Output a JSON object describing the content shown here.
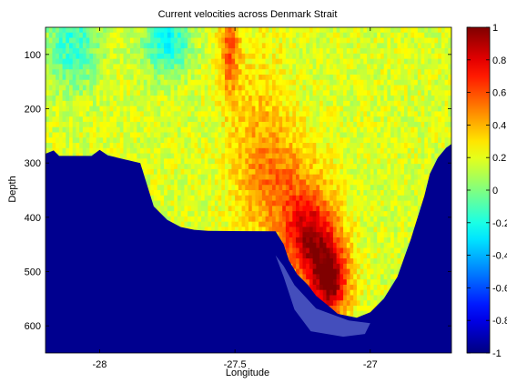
{
  "chart_data": {
    "type": "heatmap",
    "title": "Current velocities across Denmark Strait",
    "xlabel": "Longitude",
    "ylabel": "Depth",
    "xlim": [
      -28.2,
      -26.7
    ],
    "ylim": [
      650,
      50
    ],
    "y_reversed": true,
    "xticks": [
      -28,
      -27.5,
      -27
    ],
    "xtick_labels": [
      "-28",
      "-27.5",
      "-27"
    ],
    "yticks": [
      100,
      200,
      300,
      400,
      500,
      600
    ],
    "ytick_labels": [
      "100",
      "200",
      "300",
      "400",
      "500",
      "600"
    ],
    "grid": false,
    "colormap": "jet",
    "colorbar": {
      "clim": [
        -1,
        1
      ],
      "ticks": [
        1,
        0.8,
        0.6,
        0.4,
        0.2,
        0,
        -0.2,
        -0.4,
        -0.6,
        -0.8,
        -1
      ],
      "tick_labels": [
        "1",
        "0.8",
        "0.6",
        "0.4",
        "0.2",
        "0",
        "-0.2",
        "-0.4",
        "-0.6",
        "-0.8",
        "-1"
      ]
    },
    "colors": {
      "seafloor": "#00008f",
      "overlay": "#4a55c0"
    },
    "bathymetry": [
      [
        -28.2,
        283
      ],
      [
        -28.17,
        277
      ],
      [
        -28.15,
        287
      ],
      [
        -28.03,
        287
      ],
      [
        -28.0,
        276
      ],
      [
        -27.97,
        286
      ],
      [
        -27.85,
        300
      ],
      [
        -27.8,
        380
      ],
      [
        -27.75,
        405
      ],
      [
        -27.7,
        418
      ],
      [
        -27.65,
        423
      ],
      [
        -27.6,
        425
      ],
      [
        -27.35,
        426
      ],
      [
        -27.32,
        450
      ],
      [
        -27.3,
        480
      ],
      [
        -27.27,
        505
      ],
      [
        -27.23,
        525
      ],
      [
        -27.2,
        545
      ],
      [
        -27.15,
        565
      ],
      [
        -27.12,
        578
      ],
      [
        -27.05,
        585
      ],
      [
        -27.0,
        575
      ],
      [
        -26.95,
        550
      ],
      [
        -26.9,
        510
      ],
      [
        -26.85,
        440
      ],
      [
        -26.8,
        360
      ],
      [
        -26.78,
        320
      ],
      [
        -26.75,
        290
      ],
      [
        -26.72,
        272
      ],
      [
        -26.7,
        265
      ]
    ],
    "overlay_region": [
      [
        -27.35,
        470
      ],
      [
        -27.32,
        510
      ],
      [
        -27.28,
        570
      ],
      [
        -27.22,
        610
      ],
      [
        -27.1,
        620
      ],
      [
        -27.02,
        615
      ],
      [
        -27.0,
        595
      ],
      [
        -27.08,
        590
      ],
      [
        -27.2,
        568
      ],
      [
        -27.28,
        525
      ],
      [
        -27.32,
        490
      ]
    ],
    "velocity_features": [
      {
        "lon": -27.22,
        "depth": 440,
        "value": 0.85,
        "sx": 0.07,
        "sd": 55
      },
      {
        "lon": -27.15,
        "depth": 520,
        "value": 0.95,
        "sx": 0.05,
        "sd": 45
      },
      {
        "lon": -27.32,
        "depth": 340,
        "value": 0.45,
        "sx": 0.1,
        "sd": 70
      },
      {
        "lon": -27.42,
        "depth": 240,
        "value": 0.35,
        "sx": 0.08,
        "sd": 120
      },
      {
        "lon": -27.52,
        "depth": 90,
        "value": 0.55,
        "sx": 0.025,
        "sd": 60
      },
      {
        "lon": -27.75,
        "depth": 80,
        "value": -0.25,
        "sx": 0.06,
        "sd": 40
      },
      {
        "lon": -28.1,
        "depth": 80,
        "value": -0.15,
        "sx": 0.07,
        "sd": 60
      }
    ],
    "velocity_background": 0.18
  }
}
